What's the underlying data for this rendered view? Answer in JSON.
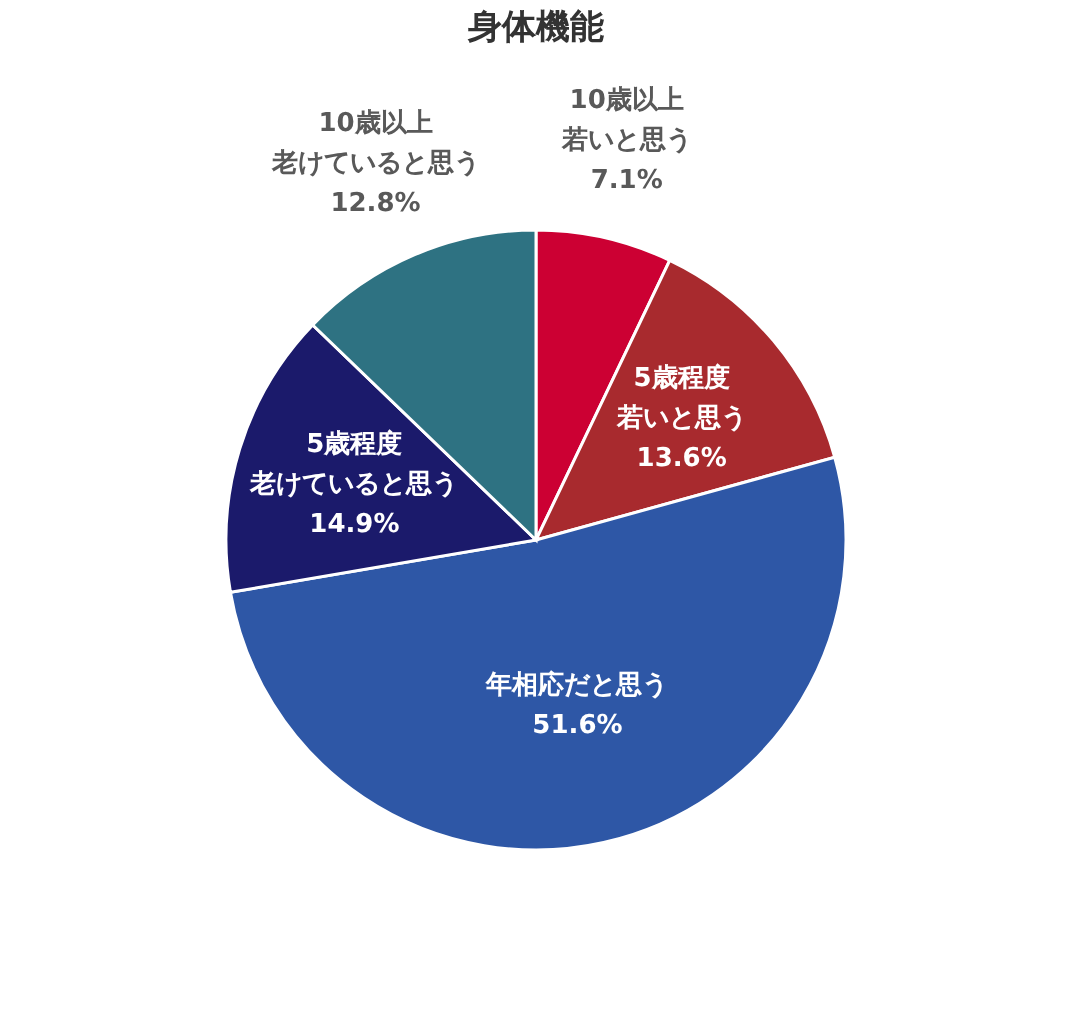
{
  "chart_data": {
    "type": "pie",
    "title": "身体機能",
    "categories": [
      "10歳以上若いと思う",
      "5歳程度若いと思う",
      "年相応だと思う",
      "5歳程度老けていると思う",
      "10歳以上老けていると思う"
    ],
    "values": [
      7.1,
      13.6,
      51.6,
      14.9,
      12.8
    ],
    "value_labels": [
      "7.1%",
      "13.6%",
      "51.6%",
      "14.9%",
      "12.8%"
    ],
    "colors": [
      "#cc0033",
      "#a82a2e",
      "#2e57a6",
      "#1b1a6b",
      "#2e7282"
    ],
    "legend": false
  }
}
